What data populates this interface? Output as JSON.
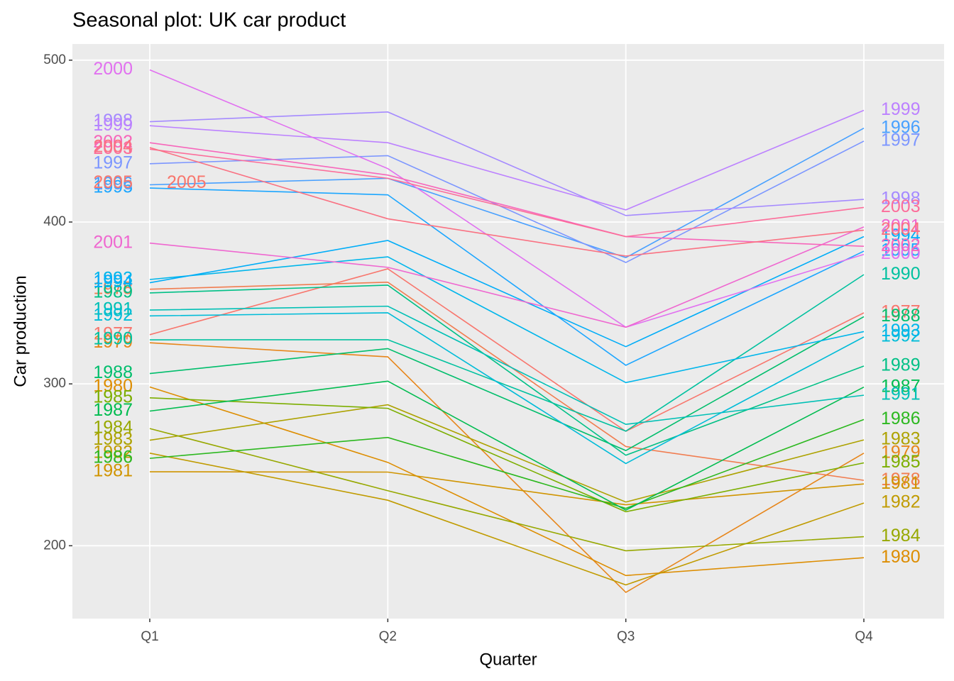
{
  "chart_data": {
    "type": "line",
    "title": "Seasonal plot: UK car product",
    "xlabel": "Quarter",
    "ylabel": "Car production",
    "categories": [
      "Q1",
      "Q2",
      "Q3",
      "Q4"
    ],
    "ylim": [
      155,
      510
    ],
    "yticks": [
      200,
      300,
      400,
      500
    ],
    "grid": true,
    "series": [
      {
        "name": "1977",
        "color": "#F8766D",
        "values": [
          330.4,
          371.1,
          270.7,
          343.9
        ]
      },
      {
        "name": "1978",
        "color": "#F17D50",
        "values": [
          358.5,
          362.8,
          261.3,
          240.4
        ]
      },
      {
        "name": "1979",
        "color": "#E7861B",
        "values": [
          325.4,
          316.7,
          171.2,
          257.2
        ]
      },
      {
        "name": "1980",
        "color": "#DD8D00",
        "values": [
          298.1,
          251.5,
          181.6,
          192.6
        ]
      },
      {
        "name": "1981",
        "color": "#D09400",
        "values": [
          245.7,
          245.5,
          225.3,
          238.2
        ]
      },
      {
        "name": "1982",
        "color": "#C09B00",
        "values": [
          257.2,
          228.1,
          175.8,
          226.4
        ]
      },
      {
        "name": "1983",
        "color": "#ADA200",
        "values": [
          265.2,
          287.1,
          227.0,
          265.4
        ]
      },
      {
        "name": "1984",
        "color": "#97A800",
        "values": [
          272.4,
          234.0,
          196.9,
          205.6
        ]
      },
      {
        "name": "1985",
        "color": "#7CAE00",
        "values": [
          291.4,
          284.9,
          221.0,
          251.2
        ]
      },
      {
        "name": "1986",
        "color": "#2CB81F",
        "values": [
          254.0,
          266.9,
          223.1,
          278.0
        ]
      },
      {
        "name": "1987",
        "color": "#00BC50",
        "values": [
          283.2,
          301.7,
          222.0,
          298.0
        ]
      },
      {
        "name": "1988",
        "color": "#00BE6C",
        "values": [
          306.4,
          321.8,
          258.8,
          341.5
        ]
      },
      {
        "name": "1989",
        "color": "#00C086",
        "values": [
          356.2,
          361.0,
          255.9,
          311.0
        ]
      },
      {
        "name": "1990",
        "color": "#00C19F",
        "values": [
          327.2,
          327.3,
          270.8,
          367.5
        ]
      },
      {
        "name": "1991",
        "color": "#00C0B5",
        "values": [
          345.6,
          348.0,
          275.0,
          293.0
        ]
      },
      {
        "name": "1992",
        "color": "#00BCD8",
        "values": [
          342.0,
          343.9,
          250.8,
          329.0
        ]
      },
      {
        "name": "1993",
        "color": "#00B6EB",
        "values": [
          364.5,
          378.5,
          300.8,
          332.3
        ]
      },
      {
        "name": "1994",
        "color": "#00ADF8",
        "values": [
          362.5,
          388.6,
          323.0,
          391.0
        ]
      },
      {
        "name": "1995",
        "color": "#1CA6FF",
        "values": [
          421.0,
          416.8,
          311.5,
          382.0
        ]
      },
      {
        "name": "1996",
        "color": "#48A0FF",
        "values": [
          423.0,
          427.0,
          378.0,
          458.0
        ]
      },
      {
        "name": "1997",
        "color": "#7C96FF",
        "values": [
          436.0,
          441.0,
          375.0,
          450.0
        ]
      },
      {
        "name": "1998",
        "color": "#A58AFF",
        "values": [
          462.0,
          468.0,
          404.0,
          414.0
        ]
      },
      {
        "name": "1999",
        "color": "#BC81FF",
        "values": [
          459.5,
          449.0,
          407.5,
          469.0
        ]
      },
      {
        "name": "2000",
        "color": "#E170F0",
        "values": [
          494.0,
          433.0,
          335.0,
          380.0
        ]
      },
      {
        "name": "2001",
        "color": "#EF67D0",
        "values": [
          387.0,
          372.0,
          335.0,
          397.0
        ]
      },
      {
        "name": "2002",
        "color": "#F766BB",
        "values": [
          449.0,
          429.0,
          391.0,
          385.0
        ]
      },
      {
        "name": "2003",
        "color": "#FC6D9A",
        "values": [
          445.0,
          427.0,
          391.0,
          409.0
        ]
      },
      {
        "name": "2004",
        "color": "#FA7182",
        "values": [
          446.0,
          402.0,
          379.0,
          395.0
        ]
      },
      {
        "name": "2005",
        "color": "#F8766D",
        "values": [
          424.0,
          null,
          null,
          null
        ]
      }
    ]
  }
}
